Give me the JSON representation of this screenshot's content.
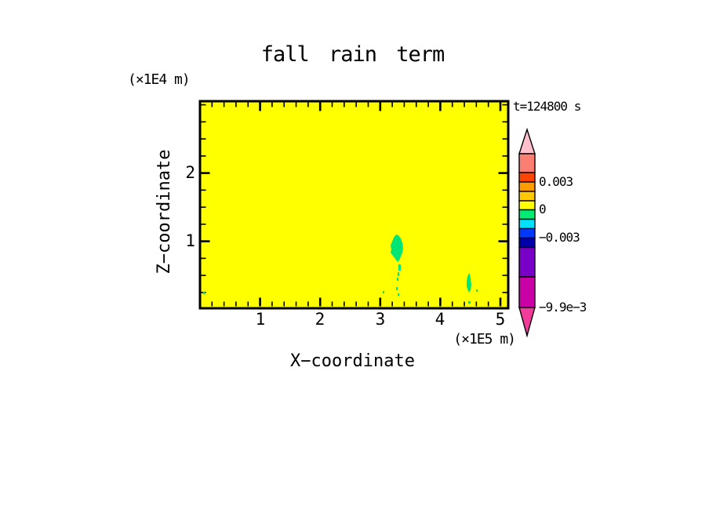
{
  "title": "fall rain term",
  "timestamp": "t=124800 s",
  "x_axis": {
    "label": "X−coordinate",
    "unit": "(×1E5 m)",
    "ticks": [
      "1",
      "2",
      "3",
      "4",
      "5"
    ]
  },
  "y_axis": {
    "label": "Z−coordinate",
    "unit": "(×1E4 m)",
    "ticks": [
      "2",
      "1"
    ]
  },
  "colorbar": {
    "labels": [
      "0.003",
      "0",
      "−0.003",
      "−9.9e−3"
    ],
    "segment_colors_top_to_bottom": [
      "#FA7F72",
      "#FF4500",
      "#FF9C00",
      "#FFC800",
      "#FFFF00",
      "#00EB73",
      "#00E0FF",
      "#0038FF",
      "#0000AA",
      "#7A00C8",
      "#C800A5"
    ],
    "tip_up_color": "#FFC0CB",
    "tip_down_color": "#F23C9C"
  },
  "palette": {
    "field_background": "#FFFF00",
    "anomaly_green": "#00E674",
    "frame": "#000000",
    "page_background": "#FFFFFF"
  },
  "chart_data": {
    "type": "heatmap",
    "title": "fall rain term",
    "annotation": "t=124800 s",
    "xlabel": "X-coordinate",
    "x_unit": "(×1E5 m)",
    "x_ticks": [
      1,
      2,
      3,
      4,
      5
    ],
    "x_minor_step": 0.2,
    "xlim": [
      0,
      5.13
    ],
    "ylabel": "Z-coordinate",
    "y_unit": "(×1E4 m)",
    "y_ticks": [
      1,
      2
    ],
    "y_minor_step": 0.25,
    "ylim": [
      0,
      3.06
    ],
    "grid": false,
    "legend_position": "vertical colorbar at right with arrow end caps",
    "colorbar_tick_labels": [
      "0.003",
      "0",
      "-0.003",
      "-9.9e-3"
    ],
    "colorbar_bin_width": 0.001,
    "field": "nearly uniform field in the 0 to 0.001 bin (yellow) over the whole domain",
    "anomalies": [
      {
        "x": 3.3,
        "z": 0.92,
        "width_x": 0.22,
        "height_z": 0.45,
        "bin": "-0.001 to 0 (green)",
        "note": "irregular blob with trailing dashes/specks down to z = 0.2"
      },
      {
        "x": 4.48,
        "z": 0.38,
        "width_x": 0.08,
        "height_z": 0.33,
        "bin": "-0.001 to 0 (green)",
        "note": "thin vertical sliver with speck below"
      }
    ]
  }
}
